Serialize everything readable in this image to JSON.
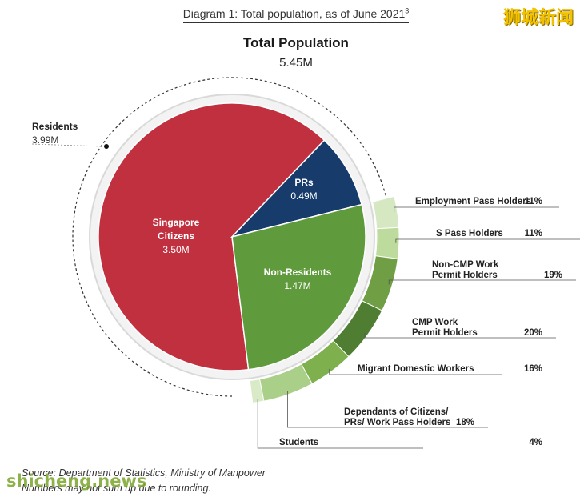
{
  "header": {
    "diagram_title": "Diagram 1: Total population, as of June 2021",
    "footnote_marker": "3",
    "watermark_cn": "狮城新闻",
    "watermark_site": "shicheng.news"
  },
  "footer": {
    "source": "Source: Department of Statistics, Ministry of Manpower",
    "note": "Numbers may not sum up due to rounding."
  },
  "chart_data": {
    "type": "pie",
    "title": "Total Population",
    "total": "5.45M",
    "residents": {
      "label": "Residents",
      "value_label": "3.99M",
      "value": 3.99
    },
    "slices": [
      {
        "name": "Singapore Citizens",
        "label_line1": "Singapore",
        "label_line2": "Citizens",
        "value": 3.5,
        "value_label": "3.50M",
        "color": "#c0303f"
      },
      {
        "name": "PRs",
        "value": 0.49,
        "value_label": "0.49M",
        "color": "#173b6b"
      },
      {
        "name": "Non-Residents",
        "value": 1.47,
        "value_label": "1.47M",
        "color": "#5f9a3c"
      }
    ],
    "non_resident_breakdown": [
      {
        "name": "Employment Pass Holders",
        "line1": "Employment Pass Holders",
        "line2": "",
        "pct": 11,
        "pct_label": "11%",
        "color": "#d6e8c2"
      },
      {
        "name": "S Pass Holders",
        "line1": "S Pass Holders",
        "line2": "",
        "pct": 11,
        "pct_label": "11%",
        "color": "#bcdb9c"
      },
      {
        "name": "Non-CMP Work Permit Holders",
        "line1": "Non-CMP Work",
        "line2": "Permit Holders",
        "pct": 19,
        "pct_label": "19%",
        "color": "#6f9e45"
      },
      {
        "name": "CMP Work Permit Holders",
        "line1": "CMP Work",
        "line2": "Permit Holders",
        "pct": 20,
        "pct_label": "20%",
        "color": "#4f7e33"
      },
      {
        "name": "Migrant Domestic Workers",
        "line1": "Migrant Domestic Workers",
        "line2": "",
        "pct": 16,
        "pct_label": "16%",
        "color": "#7eb04e"
      },
      {
        "name": "Dependants of Citizens/ PRs/ Work Pass Holders",
        "line1": "Dependants of Citizens/",
        "line2": "PRs/ Work Pass Holders",
        "pct": 18,
        "pct_label": "18%",
        "color": "#a9cf88"
      },
      {
        "name": "Students",
        "line1": "Students",
        "line2": "",
        "pct": 4,
        "pct_label": "4%",
        "color": "#d8eac6"
      }
    ],
    "colors": {
      "residents_ring": "#333333",
      "shadow": "#d9d9d9"
    }
  }
}
